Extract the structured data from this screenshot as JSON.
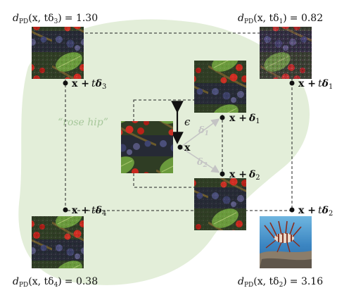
{
  "region_label": "“rose hip”",
  "corner_labels": {
    "d3": "d",
    "d1": "d",
    "d4": "d",
    "d2": "d",
    "sub": "PD",
    "args3": "(x, tδ",
    "args1": "(x, tδ",
    "args4": "(x, tδ",
    "args2": "(x, tδ",
    "idx3": "3",
    "idx1": "1",
    "idx4": "4",
    "idx2": "2",
    "close": ")",
    "val3": "= 1.30",
    "val1": "= 0.82",
    "val4": "= 0.38",
    "val2": "= 3.16"
  },
  "points": {
    "x": "x",
    "x_plus": "x +",
    "t": "t",
    "delta": "δ",
    "sub1": "1",
    "sub2": "2",
    "sub3": "3",
    "sub4": "4"
  },
  "epsilon": "ϵ",
  "arrow_labels": {
    "d1": "δ",
    "d1_sub": "1",
    "d2": "δ",
    "d2_sub": "2"
  },
  "colors": {
    "region_fill": "#e3eed9",
    "region_text": "#a6c79a",
    "faint_arrow": "#c4c4c4",
    "dash": "#222222"
  },
  "images": {
    "t3": "rose-hip-perturbed",
    "t1": "rose-hip-noisy",
    "tx": "rose-hip-clean",
    "tp1": "rose-hip-small-perturb",
    "tp2": "rose-hip-small-perturb",
    "t4": "rose-hip-perturbed",
    "t2": "lionfish-underwater"
  }
}
